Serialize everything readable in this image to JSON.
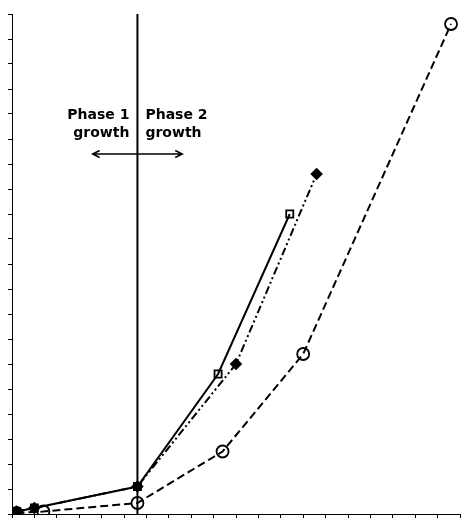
{
  "chart_data": {
    "type": "line",
    "series": [
      {
        "x": [
          0.01,
          0.05,
          0.28,
          0.46,
          0.62
        ],
        "values": [
          0.005,
          0.012,
          0.055,
          0.28,
          0.6
        ],
        "color": "#000000",
        "marker": "square-open",
        "line_style": "solid"
      },
      {
        "x": [
          0.01,
          0.05,
          0.28,
          0.5,
          0.68
        ],
        "values": [
          0.005,
          0.012,
          0.055,
          0.3,
          0.68
        ],
        "color": "#000000",
        "marker": "diamond",
        "line_style": "dashdot"
      },
      {
        "x": [
          0.01,
          0.07,
          0.28,
          0.47,
          0.65,
          0.98
        ],
        "values": [
          0.002,
          0.005,
          0.022,
          0.125,
          0.32,
          0.98
        ],
        "color": "#000000",
        "marker": "circle-open",
        "line_style": "dashed"
      }
    ],
    "xlim": [
      0,
      1.0
    ],
    "ylim": [
      0,
      1.0
    ],
    "xticks": [
      0,
      0.05,
      0.1,
      0.15,
      0.2,
      0.25,
      0.3,
      0.35,
      0.4,
      0.45,
      0.5,
      0.55,
      0.6,
      0.65,
      0.7,
      0.75,
      0.8,
      0.85,
      0.9,
      0.95,
      1.0
    ],
    "yticks": [
      0,
      0.05,
      0.1,
      0.15,
      0.2,
      0.25,
      0.3,
      0.35,
      0.4,
      0.45,
      0.5,
      0.55,
      0.6,
      0.65,
      0.7,
      0.75,
      0.8,
      0.85,
      0.9,
      0.95,
      1.0
    ],
    "tick_labels": false,
    "grid": false,
    "legend": "none",
    "phase_line": {
      "x": 0.28,
      "color": "#000000"
    },
    "annotations": [
      {
        "text": "Phase 1\ngrowth",
        "x": 0.28,
        "y": 0.78,
        "align": "right"
      },
      {
        "text": "Phase 2\ngrowth",
        "x": 0.28,
        "y": 0.78,
        "align": "left"
      }
    ],
    "arrow": {
      "x": [
        0.18,
        0.38
      ],
      "y": 0.72
    }
  }
}
